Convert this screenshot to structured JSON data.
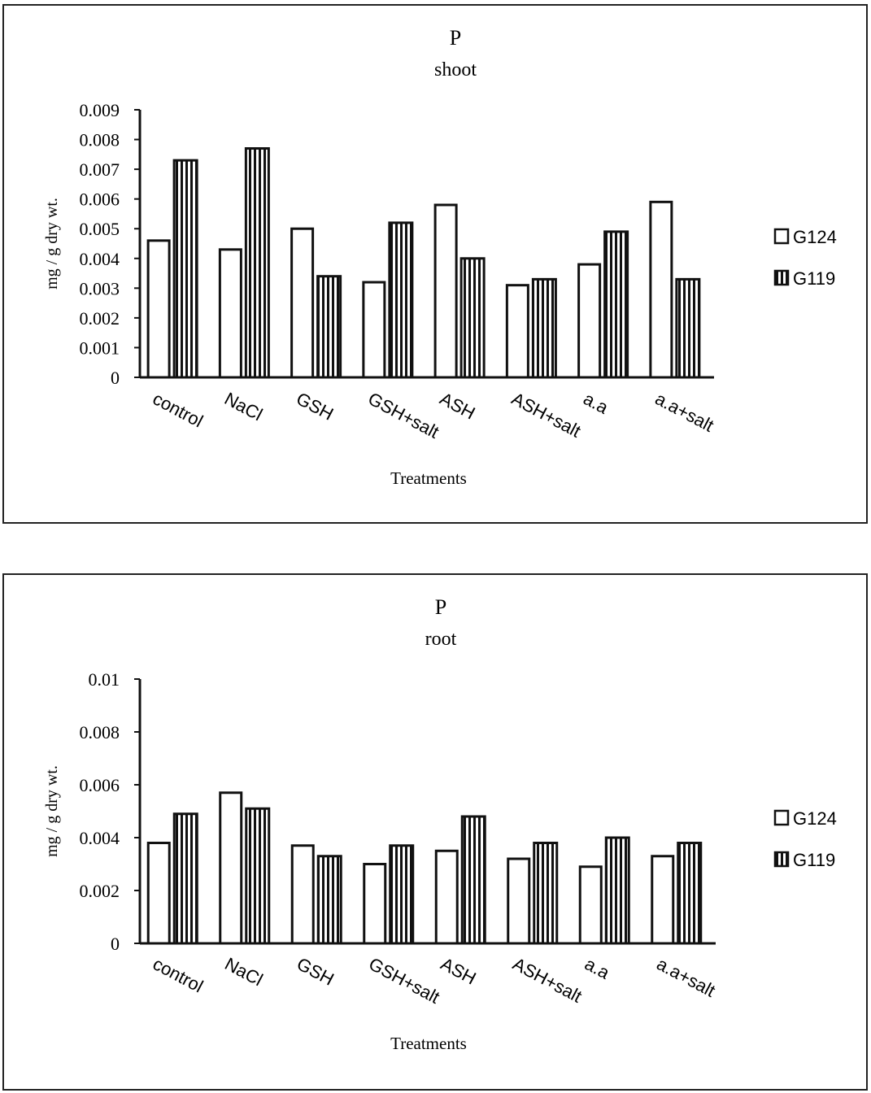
{
  "chart_data": [
    {
      "type": "bar",
      "title": "P",
      "subtitle": "shoot",
      "xlabel": "Treatments",
      "ylabel": "mg / g dry wt.",
      "ylim": [
        0,
        0.009
      ],
      "yticks": [
        "0",
        "0.001",
        "0.002",
        "0.003",
        "0.004",
        "0.005",
        "0.006",
        "0.007",
        "0.008",
        "0.009"
      ],
      "categories": [
        "control",
        "NaCl",
        "GSH",
        "GSH+salt",
        "ASH",
        "ASH+salt",
        "a.a",
        "a.a+salt"
      ],
      "legend_position": "right",
      "series": [
        {
          "name": "G124",
          "pattern": "white",
          "values": [
            0.0046,
            0.0043,
            0.005,
            0.0032,
            0.0058,
            0.0031,
            0.0038,
            0.0059
          ]
        },
        {
          "name": "G119",
          "pattern": "vertical-stripes",
          "values": [
            0.0073,
            0.0077,
            0.0034,
            0.0052,
            0.004,
            0.0033,
            0.0049,
            0.0033
          ]
        }
      ]
    },
    {
      "type": "bar",
      "title": "P",
      "subtitle": "root",
      "xlabel": "Treatments",
      "ylabel": "mg / g dry wt.",
      "ylim": [
        0,
        0.01
      ],
      "yticks": [
        "0",
        "0.002",
        "0.004",
        "0.006",
        "0.008",
        "0.01"
      ],
      "categories": [
        "control",
        "NaCl",
        "GSH",
        "GSH+salt",
        "ASH",
        "ASH+salt",
        "a.a",
        "a.a+salt"
      ],
      "legend_position": "right",
      "series": [
        {
          "name": "G124",
          "pattern": "white",
          "values": [
            0.0038,
            0.0057,
            0.0037,
            0.003,
            0.0035,
            0.0032,
            0.0029,
            0.0033
          ]
        },
        {
          "name": "G119",
          "pattern": "vertical-stripes",
          "values": [
            0.0049,
            0.0051,
            0.0033,
            0.0037,
            0.0048,
            0.0038,
            0.004,
            0.0038
          ]
        }
      ]
    }
  ]
}
